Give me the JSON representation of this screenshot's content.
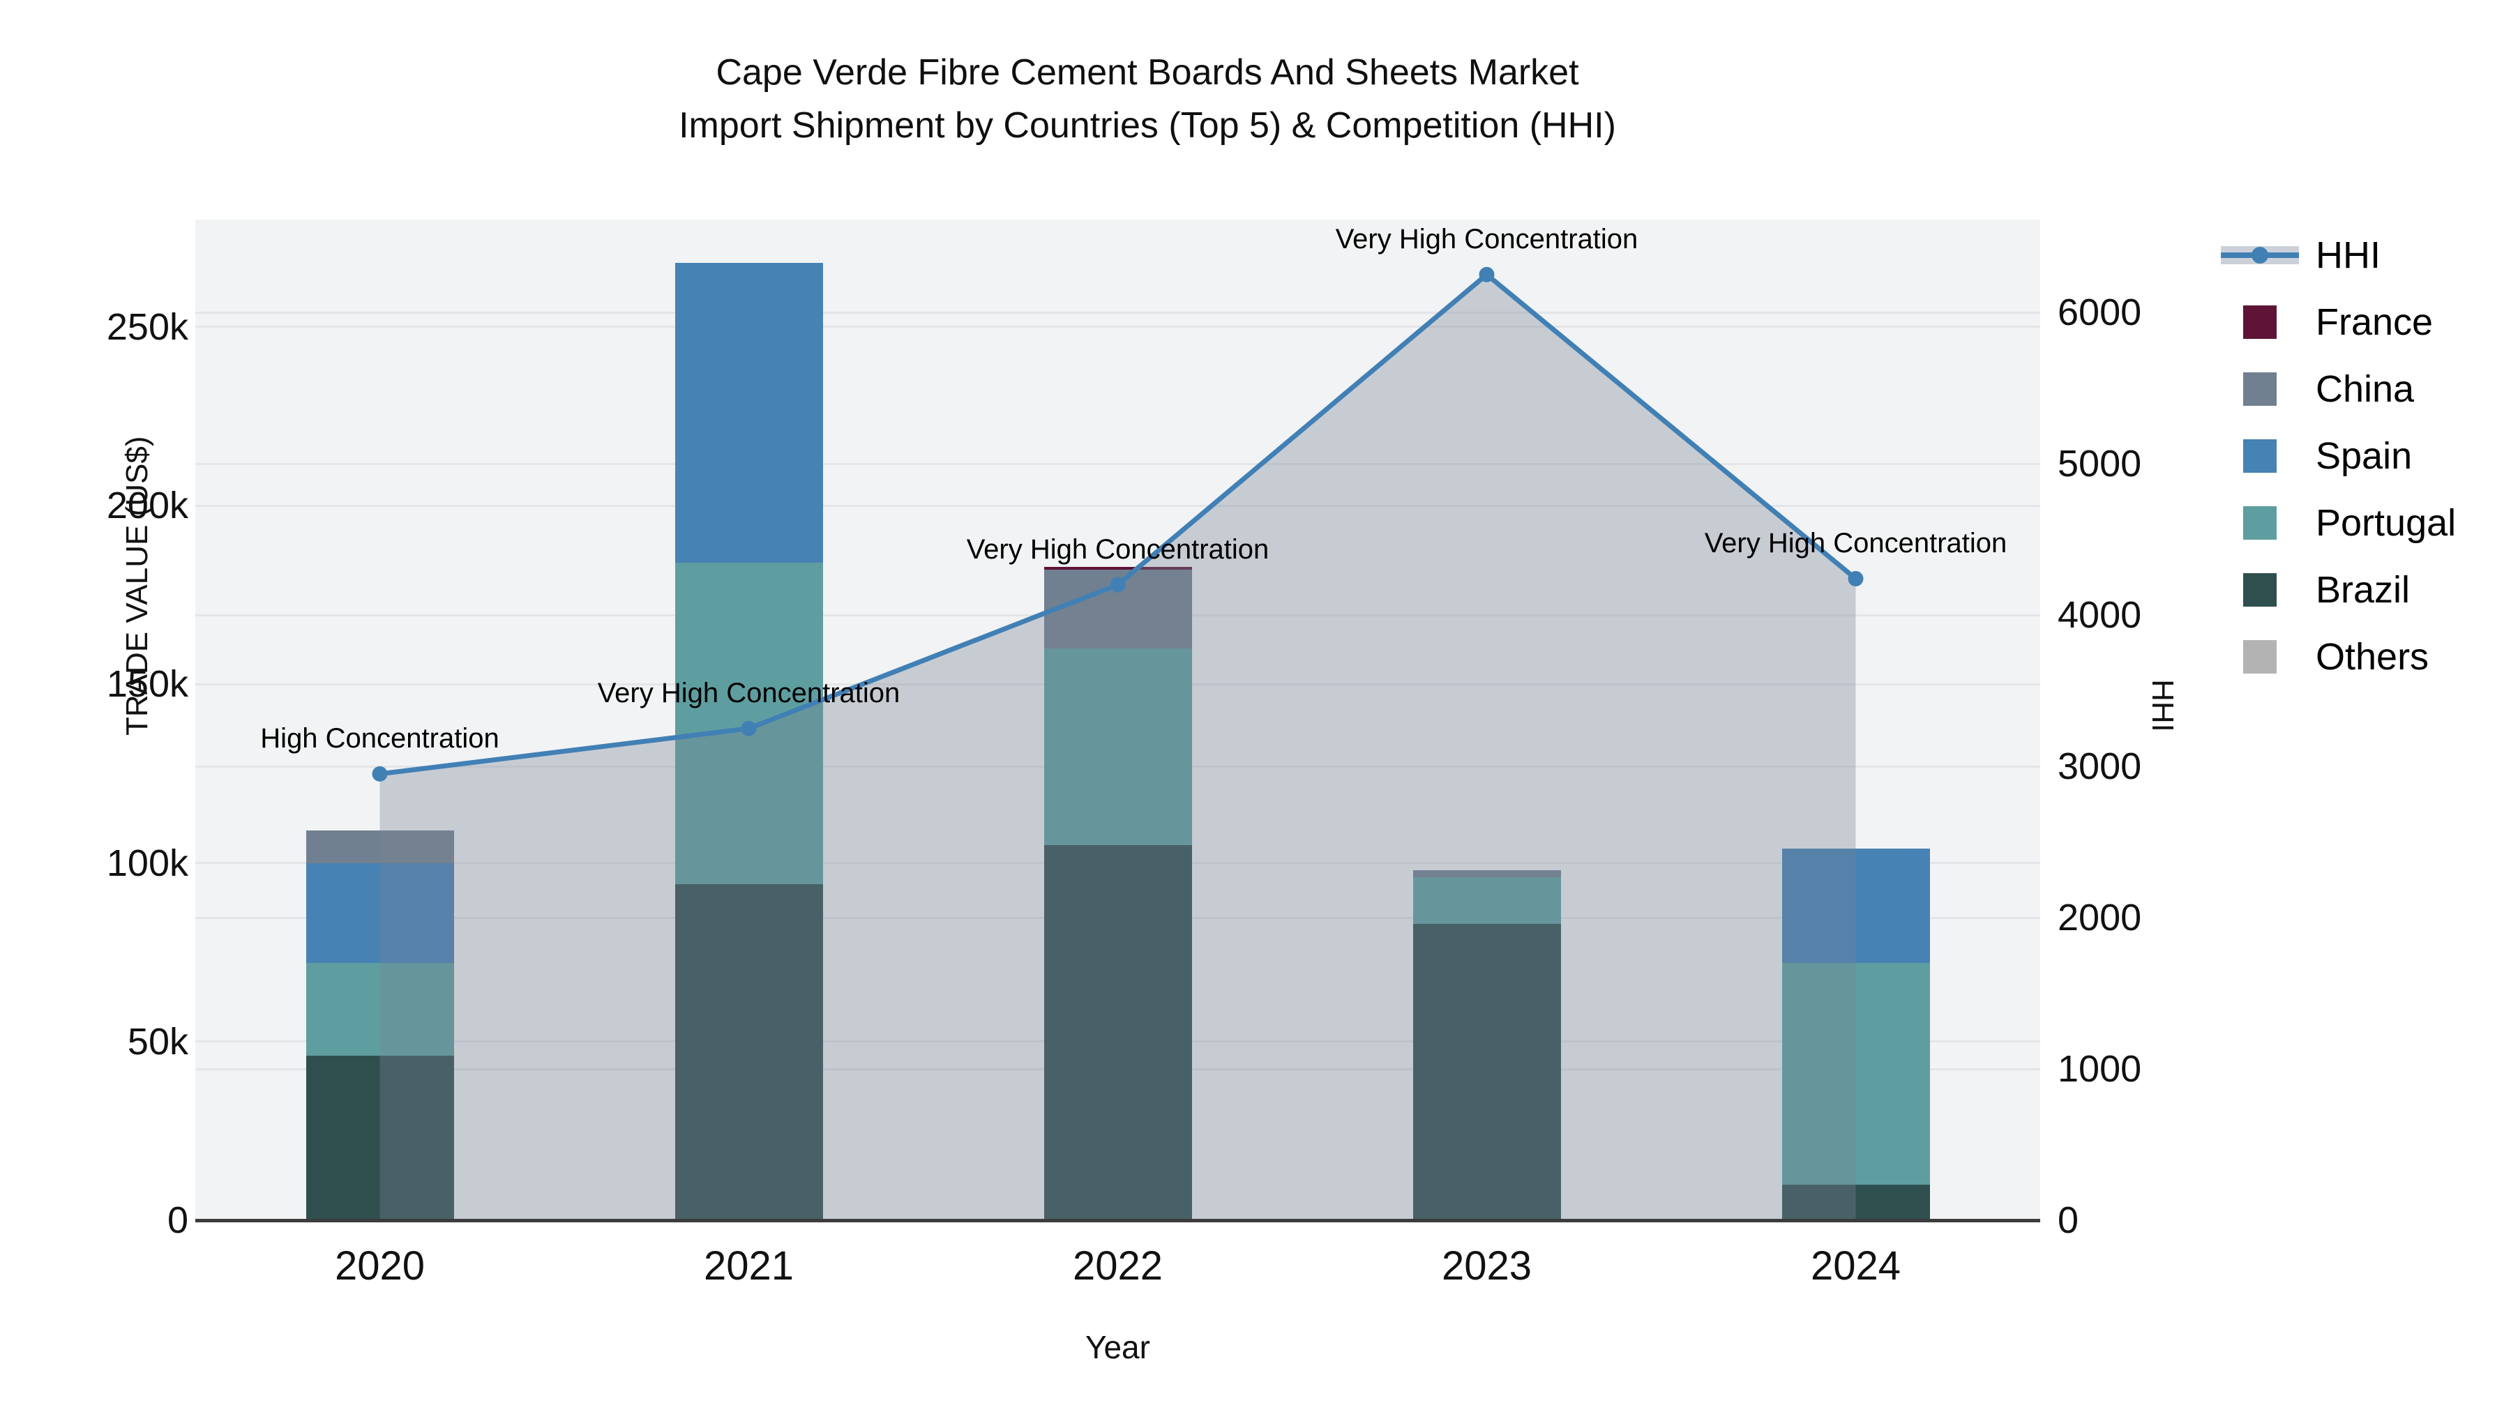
{
  "title": {
    "line1": "Cape Verde Fibre Cement Boards And Sheets Market",
    "line2": "Import Shipment by Countries (Top 5) & Competition (HHI)"
  },
  "axes": {
    "x_title": "Year",
    "y_left_title": "TRADE VALUE (US$)",
    "y_right_title": "HHI",
    "y_left_ticks": [
      {
        "label": "0",
        "value": 0
      },
      {
        "label": "50k",
        "value": 50
      },
      {
        "label": "100k",
        "value": 100
      },
      {
        "label": "150k",
        "value": 150
      },
      {
        "label": "200k",
        "value": 200
      },
      {
        "label": "250k",
        "value": 250
      }
    ],
    "y_right_ticks": [
      {
        "label": "0",
        "value": 0
      },
      {
        "label": "1000",
        "value": 1000
      },
      {
        "label": "2000",
        "value": 2000
      },
      {
        "label": "3000",
        "value": 3000
      },
      {
        "label": "4000",
        "value": 4000
      },
      {
        "label": "5000",
        "value": 5000
      },
      {
        "label": "6000",
        "value": 6000
      }
    ]
  },
  "chart_data": {
    "type": "bar",
    "subtype": "stacked-bars-with-line-area",
    "categories": [
      "2020",
      "2021",
      "2022",
      "2023",
      "2024"
    ],
    "bar_value_unit": "US$ thousands",
    "series": [
      {
        "name": "Brazil",
        "color": "#2f4f4f",
        "values": [
          46,
          94,
          105,
          83,
          10
        ]
      },
      {
        "name": "Portugal",
        "color": "#5f9ea0",
        "values": [
          26,
          90,
          55,
          13,
          62
        ]
      },
      {
        "name": "Spain",
        "color": "#4682b4",
        "values": [
          28,
          84,
          0,
          0,
          32
        ]
      },
      {
        "name": "China",
        "color": "#708090",
        "values": [
          9,
          0,
          22,
          2,
          0
        ]
      },
      {
        "name": "France",
        "color": "#5e1437",
        "values": [
          0,
          0,
          0.8,
          0,
          0
        ]
      },
      {
        "name": "Others",
        "color": "#b3b3b3",
        "values": [
          0,
          0,
          0,
          0,
          0
        ]
      }
    ],
    "line_series": {
      "name": "HHI",
      "color": "#4180b5",
      "area_fill": "rgba(119,132,148,0.35)",
      "values": [
        2950,
        3250,
        4200,
        6250,
        4240
      ]
    },
    "annotations": [
      {
        "category": "2020",
        "text": "High Concentration"
      },
      {
        "category": "2021",
        "text": "Very High Concentration"
      },
      {
        "category": "2022",
        "text": "Very High Concentration"
      },
      {
        "category": "2023",
        "text": "Very High Concentration"
      },
      {
        "category": "2024",
        "text": "Very High Concentration"
      }
    ],
    "ylim_left": [
      0,
      280
    ],
    "ylim_right": [
      0,
      6613
    ],
    "grid": true,
    "legend_position": "right"
  },
  "legend": {
    "items": [
      {
        "label": "HHI",
        "type": "line-marker",
        "color": "#4180b5"
      },
      {
        "label": "France",
        "type": "swatch",
        "color": "#5e1437"
      },
      {
        "label": "China",
        "type": "swatch",
        "color": "#708090"
      },
      {
        "label": "Spain",
        "type": "swatch",
        "color": "#4682b4"
      },
      {
        "label": "Portugal",
        "type": "swatch",
        "color": "#5f9ea0"
      },
      {
        "label": "Brazil",
        "type": "swatch",
        "color": "#2f4f4f"
      },
      {
        "label": "Others",
        "type": "swatch",
        "color": "#b3b3b3"
      }
    ]
  }
}
